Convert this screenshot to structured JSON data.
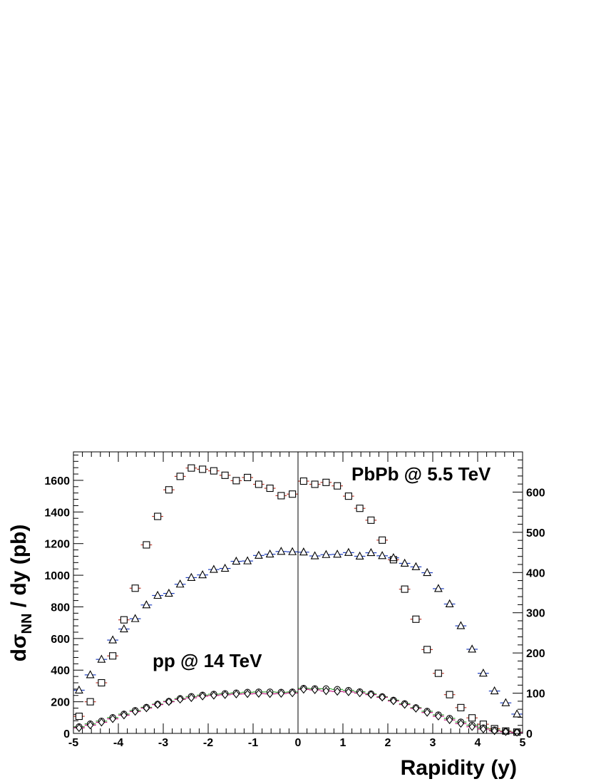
{
  "chart_data": {
    "type": "scatter",
    "xlabel": "Rapidity (y)",
    "ylabel_main": "dσ",
    "ylabel_sub": "NN",
    "ylabel_rest": " / dy   (pb)",
    "xlim": [
      -5,
      5
    ],
    "ylim_left": [
      0,
      1780
    ],
    "ylim_right": [
      0,
      700
    ],
    "x_ticks": [
      -5,
      -4,
      -3,
      -2,
      -1,
      0,
      1,
      2,
      3,
      4,
      5
    ],
    "y_ticks_left": [
      0,
      200,
      400,
      600,
      800,
      1000,
      1200,
      1400,
      1600
    ],
    "y_ticks_right": [
      0,
      100,
      200,
      300,
      400,
      500,
      600
    ],
    "annotations": {
      "pbpb": "PbPb @ 5.5 TeV",
      "pp": "pp @ 14 TeV"
    },
    "series": [
      {
        "marker": "square",
        "color": "#c0392b",
        "points": [
          [
            -4.875,
            108
          ],
          [
            -4.625,
            200
          ],
          [
            -4.375,
            320
          ],
          [
            -4.125,
            490
          ],
          [
            -3.875,
            718
          ],
          [
            -3.625,
            918
          ],
          [
            -3.375,
            1192
          ],
          [
            -3.125,
            1372
          ],
          [
            -2.875,
            1540
          ],
          [
            -2.625,
            1625
          ],
          [
            -2.375,
            1678
          ],
          [
            -2.125,
            1670
          ],
          [
            -1.875,
            1660
          ],
          [
            -1.625,
            1632
          ],
          [
            -1.375,
            1598
          ],
          [
            -1.125,
            1618
          ],
          [
            -0.875,
            1575
          ],
          [
            -0.625,
            1550
          ],
          [
            -0.375,
            1503
          ],
          [
            -0.125,
            1513
          ],
          [
            0.125,
            1595
          ],
          [
            0.375,
            1575
          ],
          [
            0.625,
            1587
          ],
          [
            0.875,
            1565
          ],
          [
            1.125,
            1500
          ],
          [
            1.375,
            1423
          ],
          [
            1.625,
            1348
          ],
          [
            1.875,
            1222
          ],
          [
            2.125,
            1098
          ],
          [
            2.375,
            912
          ],
          [
            2.625,
            722
          ],
          [
            2.875,
            530
          ],
          [
            3.125,
            380
          ],
          [
            3.375,
            245
          ],
          [
            3.625,
            163
          ],
          [
            3.875,
            98
          ],
          [
            4.125,
            58
          ],
          [
            4.375,
            30
          ],
          [
            4.625,
            15
          ],
          [
            4.875,
            8
          ]
        ]
      },
      {
        "marker": "triangle",
        "color": "#1f3fbf",
        "points": [
          [
            -4.875,
            273
          ],
          [
            -4.625,
            370
          ],
          [
            -4.375,
            468
          ],
          [
            -4.125,
            590
          ],
          [
            -3.875,
            660
          ],
          [
            -3.625,
            725
          ],
          [
            -3.375,
            812
          ],
          [
            -3.125,
            872
          ],
          [
            -2.875,
            885
          ],
          [
            -2.625,
            943
          ],
          [
            -2.375,
            985
          ],
          [
            -2.125,
            1002
          ],
          [
            -1.875,
            1036
          ],
          [
            -1.625,
            1043
          ],
          [
            -1.375,
            1088
          ],
          [
            -1.125,
            1090
          ],
          [
            -0.875,
            1125
          ],
          [
            -0.625,
            1133
          ],
          [
            -0.375,
            1150
          ],
          [
            -0.125,
            1148
          ],
          [
            0.125,
            1146
          ],
          [
            0.375,
            1122
          ],
          [
            0.625,
            1130
          ],
          [
            0.875,
            1132
          ],
          [
            1.125,
            1143
          ],
          [
            1.375,
            1120
          ],
          [
            1.625,
            1142
          ],
          [
            1.875,
            1123
          ],
          [
            2.125,
            1110
          ],
          [
            2.375,
            1075
          ],
          [
            2.625,
            1053
          ],
          [
            2.875,
            1016
          ],
          [
            3.125,
            915
          ],
          [
            3.375,
            818
          ],
          [
            3.625,
            680
          ],
          [
            3.875,
            532
          ],
          [
            4.125,
            380
          ],
          [
            4.375,
            268
          ],
          [
            4.625,
            193
          ],
          [
            4.875,
            122
          ]
        ]
      },
      {
        "marker": "circle",
        "color": "#2ea02e",
        "points": [
          [
            -4.875,
            42
          ],
          [
            -4.625,
            60
          ],
          [
            -4.375,
            78
          ],
          [
            -4.125,
            100
          ],
          [
            -3.875,
            122
          ],
          [
            -3.625,
            145
          ],
          [
            -3.375,
            165
          ],
          [
            -3.125,
            185
          ],
          [
            -2.875,
            203
          ],
          [
            -2.625,
            220
          ],
          [
            -2.375,
            233
          ],
          [
            -2.125,
            242
          ],
          [
            -1.875,
            248
          ],
          [
            -1.625,
            252
          ],
          [
            -1.375,
            256
          ],
          [
            -1.125,
            260
          ],
          [
            -0.875,
            262
          ],
          [
            -0.625,
            262
          ],
          [
            -0.375,
            260
          ],
          [
            -0.125,
            262
          ],
          [
            0.125,
            285
          ],
          [
            0.375,
            283
          ],
          [
            0.625,
            282
          ],
          [
            0.875,
            278
          ],
          [
            1.125,
            272
          ],
          [
            1.375,
            263
          ],
          [
            1.625,
            250
          ],
          [
            1.875,
            232
          ],
          [
            2.125,
            210
          ],
          [
            2.375,
            188
          ],
          [
            2.625,
            163
          ],
          [
            2.875,
            140
          ],
          [
            3.125,
            117
          ],
          [
            3.375,
            95
          ],
          [
            3.625,
            72
          ],
          [
            3.875,
            52
          ],
          [
            4.125,
            35
          ],
          [
            4.375,
            22
          ],
          [
            4.625,
            13
          ],
          [
            4.875,
            8
          ]
        ]
      },
      {
        "marker": "diamond",
        "color": "#c71585",
        "points": [
          [
            -4.875,
            35
          ],
          [
            -4.625,
            52
          ],
          [
            -4.375,
            70
          ],
          [
            -4.125,
            92
          ],
          [
            -3.875,
            115
          ],
          [
            -3.625,
            138
          ],
          [
            -3.375,
            160
          ],
          [
            -3.125,
            182
          ],
          [
            -2.875,
            200
          ],
          [
            -2.625,
            215
          ],
          [
            -2.375,
            225
          ],
          [
            -2.125,
            235
          ],
          [
            -1.875,
            240
          ],
          [
            -1.625,
            244
          ],
          [
            -1.375,
            248
          ],
          [
            -1.125,
            250
          ],
          [
            -0.875,
            252
          ],
          [
            -0.625,
            250
          ],
          [
            -0.375,
            252
          ],
          [
            -0.125,
            255
          ],
          [
            0.125,
            278
          ],
          [
            0.375,
            275
          ],
          [
            0.625,
            268
          ],
          [
            0.875,
            265
          ],
          [
            1.125,
            262
          ],
          [
            1.375,
            255
          ],
          [
            1.625,
            245
          ],
          [
            1.875,
            228
          ],
          [
            2.125,
            205
          ],
          [
            2.375,
            182
          ],
          [
            2.625,
            158
          ],
          [
            2.875,
            132
          ],
          [
            3.125,
            108
          ],
          [
            3.375,
            85
          ],
          [
            3.625,
            62
          ],
          [
            3.875,
            42
          ],
          [
            4.125,
            27
          ],
          [
            4.375,
            16
          ],
          [
            4.625,
            10
          ],
          [
            4.875,
            6
          ]
        ]
      }
    ]
  }
}
